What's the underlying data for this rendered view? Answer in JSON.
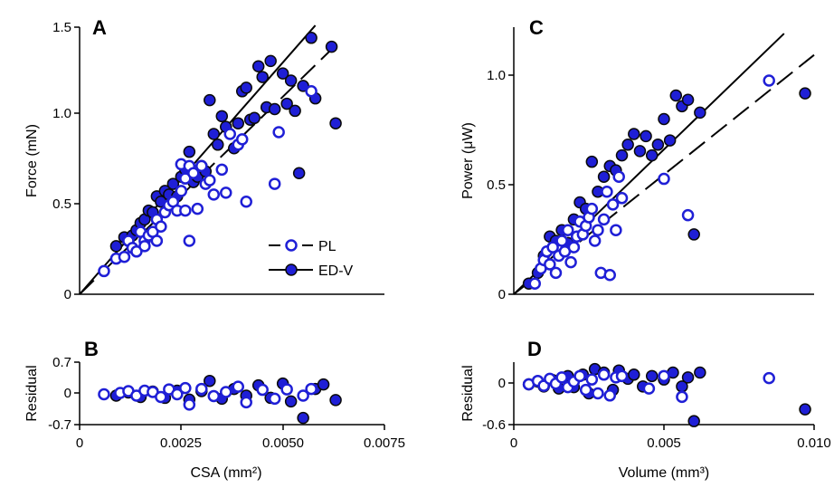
{
  "colors": {
    "PL": "#1f1fd6",
    "ED-V": "#1f1fd6",
    "edge_ED-V": "#0a0a0a",
    "line": "#000000"
  },
  "legend": [
    {
      "name": "PL",
      "marker": "open-circle",
      "line": "dashed"
    },
    {
      "name": "ED-V",
      "marker": "filled-circle",
      "line": "solid"
    }
  ],
  "chart_data": [
    {
      "panel": "A",
      "type": "scatter",
      "xlabel": "",
      "ylabel": "Force (mN)",
      "xlim": [
        0,
        0.0075
      ],
      "ylim": [
        0,
        1.5
      ],
      "yticks": [
        "0",
        "0.5",
        "1.0",
        "1.5"
      ],
      "fit_lines": [
        {
          "series": "PL",
          "style": "dashed",
          "x": [
            0,
            0.0064
          ],
          "y": [
            0,
            1.42
          ]
        },
        {
          "series": "ED-V",
          "style": "solid",
          "x": [
            0,
            0.0058
          ],
          "y": [
            0,
            1.51
          ]
        }
      ],
      "series": [
        {
          "name": "PL",
          "marker": "open",
          "x": [
            0.0006,
            0.0009,
            0.0011,
            0.0012,
            0.0013,
            0.0014,
            0.0015,
            0.0016,
            0.0016,
            0.0017,
            0.0018,
            0.0019,
            0.0019,
            0.002,
            0.0021,
            0.0022,
            0.0023,
            0.0024,
            0.0025,
            0.0025,
            0.0026,
            0.0026,
            0.0027,
            0.0027,
            0.0028,
            0.0029,
            0.003,
            0.0031,
            0.0032,
            0.0033,
            0.0035,
            0.0036,
            0.0037,
            0.0039,
            0.004,
            0.0041,
            0.0048,
            0.0049,
            0.0057
          ],
          "y": [
            0.13,
            0.2,
            0.21,
            0.3,
            0.26,
            0.24,
            0.35,
            0.3,
            0.27,
            0.33,
            0.35,
            0.42,
            0.3,
            0.38,
            0.46,
            0.5,
            0.52,
            0.47,
            0.58,
            0.73,
            0.65,
            0.47,
            0.72,
            0.3,
            0.68,
            0.48,
            0.72,
            0.62,
            0.64,
            0.56,
            0.7,
            0.57,
            0.9,
            0.84,
            0.87,
            0.52,
            0.62,
            0.91,
            1.14
          ]
        },
        {
          "name": "ED-V",
          "marker": "filled",
          "x": [
            0.0009,
            0.0011,
            0.0012,
            0.0013,
            0.0014,
            0.0015,
            0.0016,
            0.0017,
            0.0018,
            0.0019,
            0.002,
            0.0021,
            0.0022,
            0.0023,
            0.0024,
            0.0025,
            0.0026,
            0.0027,
            0.0028,
            0.0029,
            0.003,
            0.0031,
            0.0032,
            0.0033,
            0.0034,
            0.0035,
            0.0036,
            0.0038,
            0.0039,
            0.004,
            0.0041,
            0.0042,
            0.0043,
            0.0044,
            0.0045,
            0.0046,
            0.0047,
            0.0048,
            0.005,
            0.0051,
            0.0052,
            0.0053,
            0.0054,
            0.0055,
            0.0057,
            0.0058,
            0.0062,
            0.0063
          ],
          "y": [
            0.27,
            0.32,
            0.3,
            0.33,
            0.36,
            0.4,
            0.42,
            0.47,
            0.46,
            0.55,
            0.52,
            0.58,
            0.56,
            0.62,
            0.55,
            0.66,
            0.7,
            0.8,
            0.63,
            0.66,
            0.72,
            0.69,
            1.09,
            0.9,
            0.84,
            1.0,
            0.94,
            0.82,
            0.96,
            1.14,
            1.16,
            0.98,
            0.99,
            1.28,
            1.22,
            1.05,
            1.31,
            1.04,
            1.24,
            1.07,
            1.2,
            1.03,
            0.68,
            1.17,
            1.44,
            1.1,
            1.39,
            0.96
          ]
        }
      ]
    },
    {
      "panel": "B",
      "type": "scatter",
      "xlabel": "CSA (mm²)",
      "ylabel": "Residual",
      "xlim": [
        0,
        0.0075
      ],
      "ylim": [
        -0.7,
        0.7
      ],
      "xticks": [
        "0",
        "0.0025",
        "0.0050",
        "0.0075"
      ],
      "yticks": [
        "-0.7",
        "0",
        "0.7"
      ],
      "series": [
        {
          "name": "PL",
          "marker": "open",
          "x": [
            0.0006,
            0.001,
            0.0012,
            0.0014,
            0.0016,
            0.0018,
            0.002,
            0.0022,
            0.0024,
            0.0026,
            0.0027,
            0.003,
            0.0033,
            0.0036,
            0.0039,
            0.0041,
            0.0045,
            0.0048,
            0.0051,
            0.0055,
            0.0057
          ],
          "y": [
            -0.02,
            0.01,
            0.05,
            -0.05,
            0.06,
            0.03,
            -0.08,
            0.09,
            -0.02,
            0.12,
            -0.25,
            0.1,
            -0.06,
            0.03,
            0.15,
            -0.2,
            0.08,
            -0.12,
            0.09,
            -0.05,
            0.1
          ]
        },
        {
          "name": "ED-V",
          "marker": "filled",
          "x": [
            0.0009,
            0.0012,
            0.0015,
            0.0018,
            0.0021,
            0.0024,
            0.0027,
            0.003,
            0.0032,
            0.0035,
            0.0038,
            0.0041,
            0.0044,
            0.0047,
            0.005,
            0.0052,
            0.0055,
            0.0058,
            0.006,
            0.0063
          ],
          "y": [
            -0.05,
            0.02,
            -0.08,
            0.04,
            -0.1,
            0.06,
            -0.14,
            0.05,
            0.28,
            -0.12,
            0.1,
            -0.05,
            0.18,
            -0.1,
            0.22,
            -0.18,
            -0.55,
            0.1,
            0.2,
            -0.15
          ]
        }
      ]
    },
    {
      "panel": "C",
      "type": "scatter",
      "xlabel": "",
      "ylabel": "Power (μW)",
      "xlim": [
        0,
        0.01
      ],
      "ylim": [
        0,
        1.25
      ],
      "yticks": [
        "0",
        "0.5",
        "1.0"
      ],
      "fit_lines": [
        {
          "series": "PL",
          "style": "dashed",
          "x": [
            0,
            0.01
          ],
          "y": [
            0,
            1.12
          ]
        },
        {
          "series": "ED-V",
          "style": "solid",
          "x": [
            0,
            0.009
          ],
          "y": [
            0,
            1.22
          ]
        }
      ],
      "series": [
        {
          "name": "PL",
          "marker": "open",
          "x": [
            0.0007,
            0.0009,
            0.001,
            0.0011,
            0.0012,
            0.0013,
            0.0014,
            0.0015,
            0.0016,
            0.0017,
            0.0018,
            0.0019,
            0.002,
            0.0021,
            0.0022,
            0.0023,
            0.0024,
            0.0025,
            0.0026,
            0.0027,
            0.0028,
            0.0029,
            0.003,
            0.0031,
            0.0032,
            0.0033,
            0.0034,
            0.0035,
            0.0036,
            0.005,
            0.0058,
            0.0085
          ],
          "y": [
            0.05,
            0.12,
            0.16,
            0.2,
            0.14,
            0.22,
            0.1,
            0.18,
            0.25,
            0.2,
            0.3,
            0.15,
            0.22,
            0.27,
            0.34,
            0.28,
            0.32,
            0.36,
            0.4,
            0.25,
            0.3,
            0.1,
            0.35,
            0.48,
            0.09,
            0.42,
            0.3,
            0.55,
            0.45,
            0.54,
            0.37,
            1.0
          ]
        },
        {
          "name": "ED-V",
          "marker": "filled",
          "x": [
            0.0005,
            0.0008,
            0.001,
            0.0012,
            0.0014,
            0.0016,
            0.0018,
            0.002,
            0.0022,
            0.0024,
            0.0026,
            0.0028,
            0.003,
            0.0032,
            0.0034,
            0.0036,
            0.0038,
            0.004,
            0.0042,
            0.0044,
            0.0046,
            0.0048,
            0.005,
            0.0052,
            0.0054,
            0.0056,
            0.0058,
            0.006,
            0.0062,
            0.0097
          ],
          "y": [
            0.05,
            0.1,
            0.18,
            0.27,
            0.25,
            0.3,
            0.24,
            0.35,
            0.43,
            0.4,
            0.62,
            0.48,
            0.55,
            0.6,
            0.58,
            0.65,
            0.7,
            0.75,
            0.67,
            0.74,
            0.65,
            0.7,
            0.82,
            0.72,
            0.93,
            0.88,
            0.91,
            0.28,
            0.85,
            0.94
          ]
        }
      ]
    },
    {
      "panel": "D",
      "type": "scatter",
      "xlabel": "Volume (mm³)",
      "ylabel": "Residual",
      "xlim": [
        0,
        0.01
      ],
      "ylim": [
        -0.6,
        0.3
      ],
      "xticks": [
        "0",
        "0.005",
        "0.010"
      ],
      "yticks": [
        "-0.6",
        "0"
      ],
      "series": [
        {
          "name": "PL",
          "marker": "open",
          "x": [
            0.0005,
            0.0008,
            0.001,
            0.0012,
            0.0014,
            0.0016,
            0.0018,
            0.002,
            0.0022,
            0.0024,
            0.0026,
            0.0028,
            0.003,
            0.0032,
            0.0034,
            0.0036,
            0.0045,
            0.005,
            0.0056,
            0.0085
          ],
          "y": [
            -0.02,
            0.03,
            -0.04,
            0.06,
            -0.01,
            0.08,
            -0.06,
            0.02,
            0.1,
            -0.1,
            0.05,
            -0.15,
            0.12,
            -0.18,
            0.08,
            0.1,
            -0.08,
            0.1,
            -0.2,
            0.07
          ]
        },
        {
          "name": "ED-V",
          "marker": "filled",
          "x": [
            0.0005,
            0.0008,
            0.001,
            0.0013,
            0.0015,
            0.0018,
            0.002,
            0.0023,
            0.0025,
            0.0027,
            0.003,
            0.0033,
            0.0035,
            0.0038,
            0.004,
            0.0043,
            0.0046,
            0.005,
            0.0053,
            0.0056,
            0.0058,
            0.006,
            0.0062,
            0.0097
          ],
          "y": [
            -0.02,
            0.02,
            -0.05,
            0.04,
            -0.08,
            0.1,
            -0.06,
            0.12,
            -0.15,
            0.2,
            0.15,
            -0.1,
            0.18,
            0.06,
            0.12,
            -0.05,
            0.1,
            0.05,
            0.15,
            -0.05,
            0.08,
            -0.55,
            0.15,
            -0.38
          ]
        }
      ]
    }
  ],
  "panel_labels": {
    "A": "A",
    "B": "B",
    "C": "C",
    "D": "D"
  }
}
